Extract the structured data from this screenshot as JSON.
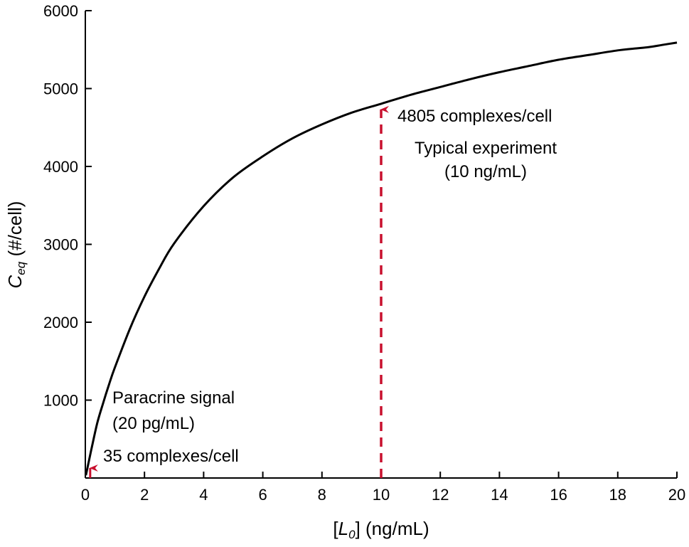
{
  "chart_data": {
    "type": "line",
    "title": "",
    "xlabel": {
      "open": "[",
      "var": "L",
      "sub": "0",
      "close": "]",
      "unit": " (ng/mL)"
    },
    "ylabel": {
      "var": "C",
      "sub": "eq",
      "unit": " (#/cell)"
    },
    "xlim": [
      0,
      20
    ],
    "ylim": [
      0,
      6000
    ],
    "xticks": [
      0,
      2,
      4,
      6,
      8,
      10,
      12,
      14,
      16,
      18,
      20
    ],
    "yticks": [
      1000,
      2000,
      3000,
      4000,
      5000,
      6000
    ],
    "grid": false,
    "colors": {
      "curve": "#000000",
      "arrow": "#c8102e"
    },
    "series": [
      {
        "x": [
          0.02,
          0.2,
          0.4,
          0.6,
          0.8,
          1.0,
          1.5,
          2.0,
          2.5,
          3.0,
          4.0,
          5.0,
          6.0,
          7.0,
          8.0,
          9.0,
          10.0,
          11.0,
          12.0,
          13.0,
          14.0,
          15.0,
          16.0,
          17.0,
          18.0,
          19.0,
          19.5,
          20.0
        ],
        "y": [
          35,
          360,
          700,
          960,
          1200,
          1420,
          1910,
          2330,
          2690,
          3010,
          3490,
          3860,
          4130,
          4360,
          4540,
          4690,
          4805,
          4920,
          5020,
          5120,
          5210,
          5290,
          5370,
          5430,
          5490,
          5530,
          5560,
          5590
        ]
      }
    ],
    "annotations": [
      {
        "id": "typical",
        "x": 10,
        "y": 4805,
        "style": "dashed-arrow",
        "lines": [
          "4805 complexes/cell",
          "Typical experiment",
          "(10 ng/mL)"
        ]
      },
      {
        "id": "paracrine",
        "x": 0.02,
        "y": 35,
        "style": "arrow",
        "lines": [
          "Paracrine signal",
          "(20 pg/mL)",
          "35 complexes/cell"
        ]
      }
    ]
  }
}
